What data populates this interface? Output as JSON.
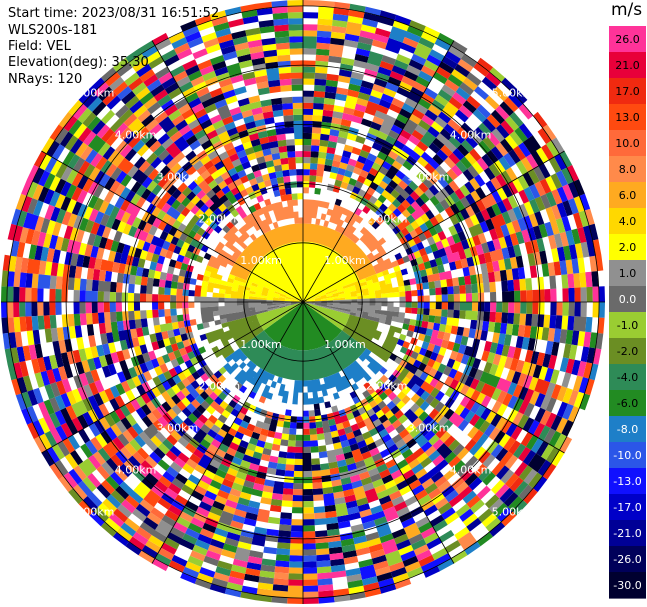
{
  "header": {
    "start_time": "Start time: 2023/08/31 16:51:52",
    "instrument": "WLS200s-181",
    "field": "Field: VEL",
    "elevation": "Elevation(deg): 35.30",
    "nrays": "NRays: 120"
  },
  "range_rings": {
    "labels": [
      "1.00km",
      "2.00km",
      "3.00km",
      "4.00km",
      "5.00km"
    ]
  },
  "colorbar": {
    "unit": "m/s",
    "levels": [
      {
        "label": "26.0",
        "color": "#ff3399"
      },
      {
        "label": "21.0",
        "color": "#e8003a"
      },
      {
        "label": "17.0",
        "color": "#f02a10"
      },
      {
        "label": "13.0",
        "color": "#ff4a10"
      },
      {
        "label": "10.0",
        "color": "#ff6a3a"
      },
      {
        "label": "8.0",
        "color": "#ff8a4a"
      },
      {
        "label": "6.0",
        "color": "#ffaa20"
      },
      {
        "label": "4.0",
        "color": "#ffd800"
      },
      {
        "label": "2.0",
        "color": "#ffff00"
      },
      {
        "label": "1.0",
        "color": "#909090"
      },
      {
        "label": "0.0",
        "color": "#6a6a6a"
      },
      {
        "label": "-1.0",
        "color": "#9acd32"
      },
      {
        "label": "-2.0",
        "color": "#6b8e23"
      },
      {
        "label": "-4.0",
        "color": "#2e8b57"
      },
      {
        "label": "-6.0",
        "color": "#228b22"
      },
      {
        "label": "-8.0",
        "color": "#1e7fc8"
      },
      {
        "label": "-10.0",
        "color": "#2b56e8"
      },
      {
        "label": "-13.0",
        "color": "#1010ff"
      },
      {
        "label": "-17.0",
        "color": "#0000c8"
      },
      {
        "label": "-21.0",
        "color": "#000096"
      },
      {
        "label": "-26.0",
        "color": "#00005a"
      },
      {
        "label": "-30.0",
        "color": "#000030"
      }
    ]
  }
}
